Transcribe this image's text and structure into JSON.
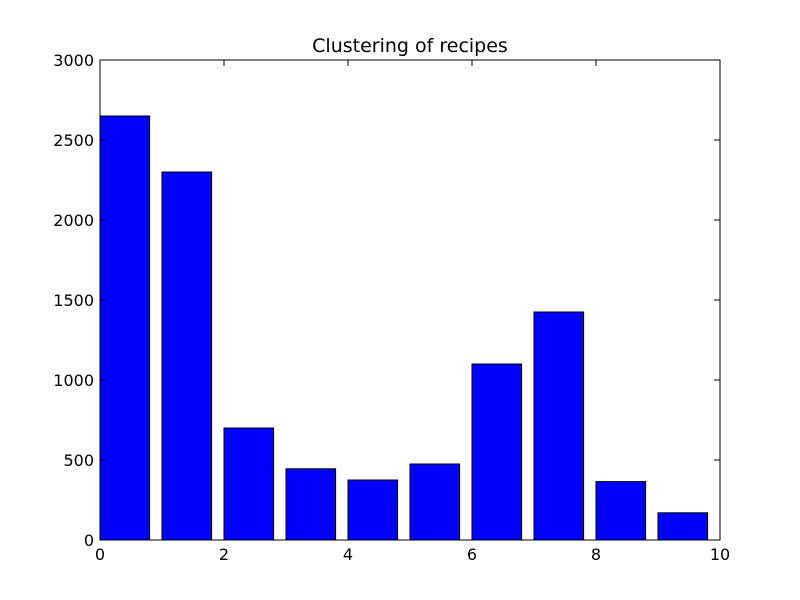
{
  "chart_data": {
    "type": "bar",
    "title": "Clustering of recipes",
    "xlabel": "",
    "ylabel": "",
    "xlim": [
      0,
      10
    ],
    "ylim": [
      0,
      3000
    ],
    "grid": false,
    "bar_color": "#0000ff",
    "edge_color": "#000000",
    "bars": [
      {
        "x": 0,
        "width": 0.8,
        "value": 2650
      },
      {
        "x": 1,
        "width": 0.8,
        "value": 2300
      },
      {
        "x": 2,
        "width": 0.8,
        "value": 700
      },
      {
        "x": 3,
        "width": 0.8,
        "value": 445
      },
      {
        "x": 4,
        "width": 0.8,
        "value": 375
      },
      {
        "x": 5,
        "width": 0.8,
        "value": 475
      },
      {
        "x": 6,
        "width": 0.8,
        "value": 1100
      },
      {
        "x": 7,
        "width": 0.8,
        "value": 1425
      },
      {
        "x": 8,
        "width": 0.8,
        "value": 365
      },
      {
        "x": 9,
        "width": 0.8,
        "value": 170
      }
    ],
    "x_ticks": [
      "0",
      "2",
      "4",
      "6",
      "8",
      "10"
    ],
    "y_ticks": [
      "0",
      "500",
      "1000",
      "1500",
      "2000",
      "2500",
      "3000"
    ]
  }
}
